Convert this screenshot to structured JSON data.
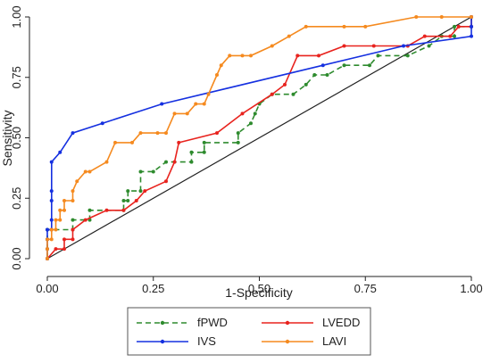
{
  "chart_data": {
    "type": "line",
    "title": "",
    "xlabel": "1-Specificity",
    "ylabel": "Sensitivity",
    "xlim": [
      0,
      1
    ],
    "ylim": [
      0,
      1
    ],
    "x_ticks": [
      0,
      0.25,
      0.5,
      0.75,
      1
    ],
    "x_tick_labels": [
      "0.00",
      "0.25",
      "0.50",
      "0.75",
      "1.00"
    ],
    "y_ticks": [
      0,
      0.25,
      0.5,
      0.75,
      1
    ],
    "y_tick_labels": [
      "0.00",
      "0.25",
      "0.50",
      "0.75",
      "1.00"
    ],
    "grid": false,
    "legend_position": "bottom",
    "reference_line": {
      "x": [
        0,
        1
      ],
      "y": [
        0,
        1
      ],
      "color": "#222222"
    },
    "series": [
      {
        "name": "fPWD",
        "color": "#2e8b2e",
        "dashed": true,
        "points": [
          [
            0.0,
            0.0
          ],
          [
            0.0,
            0.04
          ],
          [
            0.0,
            0.08
          ],
          [
            0.0,
            0.12
          ],
          [
            0.06,
            0.12
          ],
          [
            0.06,
            0.16
          ],
          [
            0.1,
            0.16
          ],
          [
            0.1,
            0.2
          ],
          [
            0.18,
            0.2
          ],
          [
            0.18,
            0.24
          ],
          [
            0.19,
            0.24
          ],
          [
            0.19,
            0.28
          ],
          [
            0.22,
            0.28
          ],
          [
            0.22,
            0.36
          ],
          [
            0.25,
            0.36
          ],
          [
            0.28,
            0.4
          ],
          [
            0.34,
            0.4
          ],
          [
            0.34,
            0.44
          ],
          [
            0.37,
            0.44
          ],
          [
            0.37,
            0.48
          ],
          [
            0.45,
            0.48
          ],
          [
            0.45,
            0.52
          ],
          [
            0.48,
            0.56
          ],
          [
            0.49,
            0.6
          ],
          [
            0.5,
            0.64
          ],
          [
            0.53,
            0.68
          ],
          [
            0.58,
            0.68
          ],
          [
            0.61,
            0.72
          ],
          [
            0.63,
            0.76
          ],
          [
            0.66,
            0.76
          ],
          [
            0.7,
            0.8
          ],
          [
            0.76,
            0.8
          ],
          [
            0.78,
            0.84
          ],
          [
            0.85,
            0.84
          ],
          [
            0.9,
            0.88
          ],
          [
            0.93,
            0.92
          ],
          [
            0.96,
            0.92
          ],
          [
            0.96,
            0.96
          ],
          [
            1.0,
            0.96
          ],
          [
            1.0,
            1.0
          ]
        ]
      },
      {
        "name": "LVEDD",
        "color": "#e8231e",
        "dashed": false,
        "points": [
          [
            0.0,
            0.0
          ],
          [
            0.02,
            0.04
          ],
          [
            0.04,
            0.04
          ],
          [
            0.04,
            0.08
          ],
          [
            0.06,
            0.08
          ],
          [
            0.06,
            0.12
          ],
          [
            0.09,
            0.16
          ],
          [
            0.14,
            0.2
          ],
          [
            0.18,
            0.2
          ],
          [
            0.21,
            0.24
          ],
          [
            0.23,
            0.28
          ],
          [
            0.28,
            0.32
          ],
          [
            0.3,
            0.4
          ],
          [
            0.31,
            0.48
          ],
          [
            0.4,
            0.52
          ],
          [
            0.46,
            0.6
          ],
          [
            0.53,
            0.68
          ],
          [
            0.56,
            0.72
          ],
          [
            0.59,
            0.84
          ],
          [
            0.64,
            0.84
          ],
          [
            0.7,
            0.88
          ],
          [
            0.77,
            0.88
          ],
          [
            0.85,
            0.88
          ],
          [
            0.89,
            0.92
          ],
          [
            0.95,
            0.92
          ],
          [
            0.97,
            0.96
          ],
          [
            1.0,
            0.96
          ],
          [
            1.0,
            1.0
          ]
        ]
      },
      {
        "name": "IVS",
        "color": "#1530e0",
        "dashed": false,
        "points": [
          [
            0.0,
            0.0
          ],
          [
            0.0,
            0.04
          ],
          [
            0.0,
            0.08
          ],
          [
            0.0,
            0.12
          ],
          [
            0.01,
            0.12
          ],
          [
            0.01,
            0.16
          ],
          [
            0.01,
            0.24
          ],
          [
            0.01,
            0.28
          ],
          [
            0.01,
            0.4
          ],
          [
            0.03,
            0.44
          ],
          [
            0.06,
            0.52
          ],
          [
            0.13,
            0.56
          ],
          [
            0.27,
            0.64
          ],
          [
            0.65,
            0.8
          ],
          [
            0.84,
            0.88
          ],
          [
            1.0,
            0.92
          ],
          [
            1.0,
            0.96
          ],
          [
            1.0,
            1.0
          ]
        ]
      },
      {
        "name": "LAVI",
        "color": "#f58a1f",
        "dashed": false,
        "points": [
          [
            0.0,
            0.0
          ],
          [
            0.0,
            0.04
          ],
          [
            0.0,
            0.08
          ],
          [
            0.01,
            0.08
          ],
          [
            0.01,
            0.12
          ],
          [
            0.02,
            0.12
          ],
          [
            0.02,
            0.16
          ],
          [
            0.03,
            0.16
          ],
          [
            0.03,
            0.2
          ],
          [
            0.04,
            0.2
          ],
          [
            0.04,
            0.24
          ],
          [
            0.06,
            0.24
          ],
          [
            0.06,
            0.28
          ],
          [
            0.07,
            0.32
          ],
          [
            0.09,
            0.36
          ],
          [
            0.1,
            0.36
          ],
          [
            0.14,
            0.4
          ],
          [
            0.16,
            0.48
          ],
          [
            0.2,
            0.48
          ],
          [
            0.22,
            0.52
          ],
          [
            0.26,
            0.52
          ],
          [
            0.28,
            0.52
          ],
          [
            0.3,
            0.6
          ],
          [
            0.33,
            0.6
          ],
          [
            0.35,
            0.64
          ],
          [
            0.37,
            0.64
          ],
          [
            0.38,
            0.68
          ],
          [
            0.4,
            0.76
          ],
          [
            0.41,
            0.8
          ],
          [
            0.43,
            0.84
          ],
          [
            0.46,
            0.84
          ],
          [
            0.48,
            0.84
          ],
          [
            0.53,
            0.88
          ],
          [
            0.57,
            0.92
          ],
          [
            0.61,
            0.96
          ],
          [
            0.7,
            0.96
          ],
          [
            0.75,
            0.96
          ],
          [
            0.87,
            1.0
          ],
          [
            0.93,
            1.0
          ],
          [
            1.0,
            1.0
          ]
        ]
      }
    ]
  }
}
